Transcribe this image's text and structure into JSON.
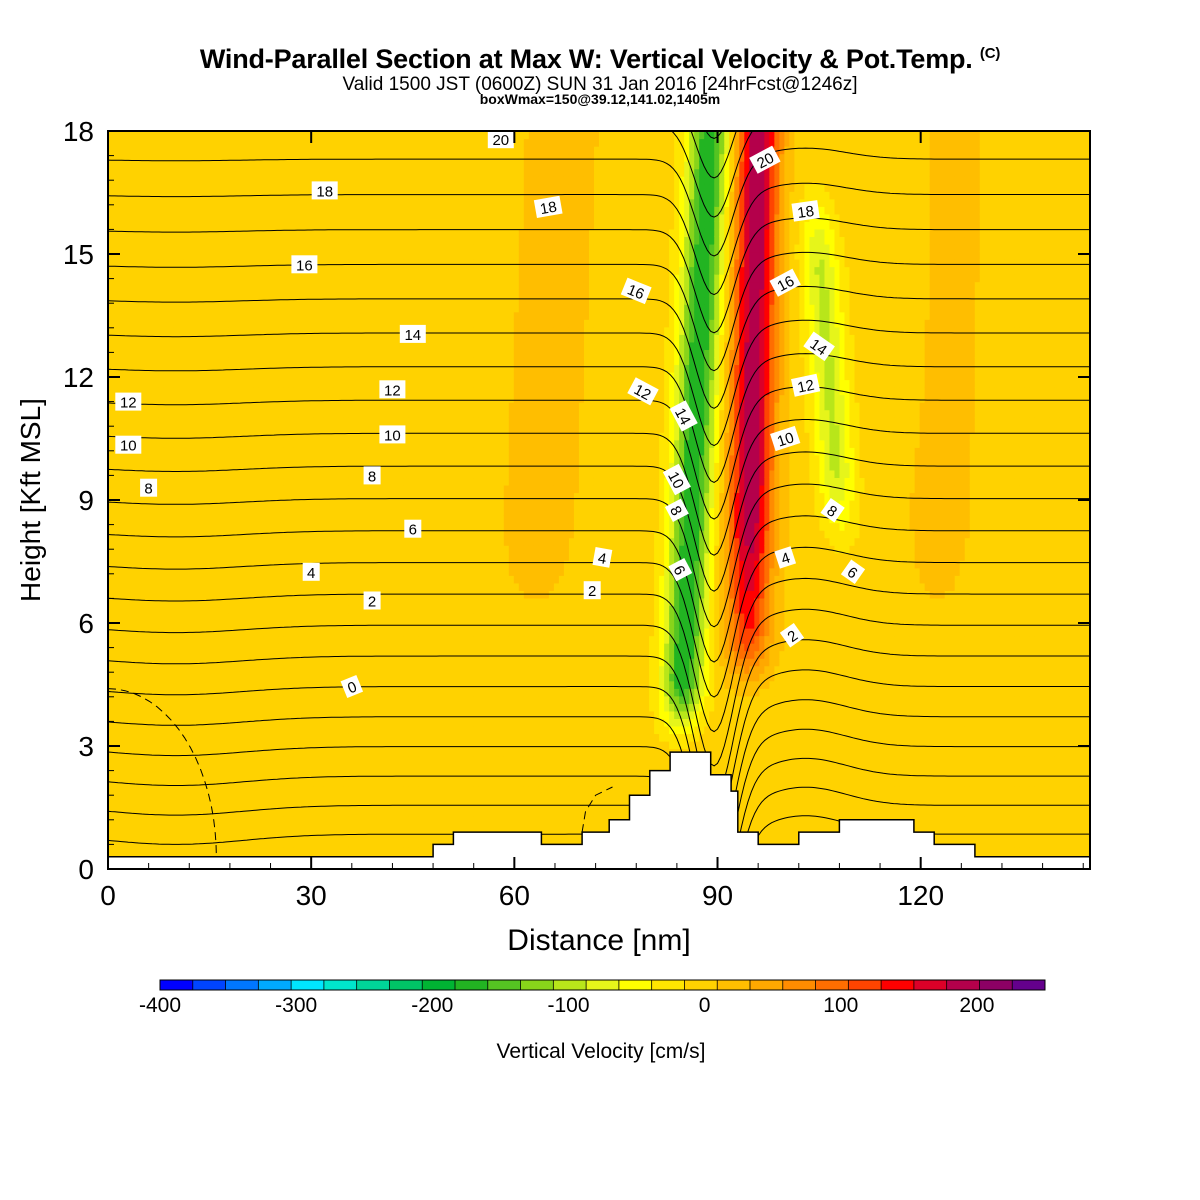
{
  "header": {
    "title": "Wind-Parallel Section at Max W: Vertical Velocity & Pot.Temp.",
    "copyright": "(C)",
    "valid_line": "Valid 1500 JST (0600Z) SUN 31 Jan 2016 [24hrFcst@1246z]",
    "box_line": "boxWmax=150@39.12,141.02,1405m"
  },
  "chart_data": {
    "type": "heatmap",
    "xlabel": "Distance [nm]",
    "ylabel": "Height [Kft MSL]",
    "xlim": [
      0,
      145
    ],
    "ylim": [
      0,
      18
    ],
    "xticks": [
      "0",
      "30",
      "60",
      "90",
      "120"
    ],
    "yticks": [
      "0",
      "3",
      "6",
      "9",
      "12",
      "15",
      "18"
    ],
    "colorbar": {
      "label": "Vertical Velocity [cm/s]",
      "ticks": [
        "-400",
        "-300",
        "-200",
        "-100",
        "0",
        "100",
        "200"
      ],
      "tick_values": [
        -400,
        -300,
        -200,
        -100,
        0,
        100,
        200
      ],
      "range": [
        -400,
        250
      ],
      "bin_width": 25,
      "colors": [
        "#0000ff",
        "#0044ff",
        "#0077ff",
        "#00aaff",
        "#00e6ff",
        "#00e6cc",
        "#00d499",
        "#00c466",
        "#00b433",
        "#22b422",
        "#55c422",
        "#88d41a",
        "#b8e61a",
        "#e6f51a",
        "#ffff00",
        "#ffe600",
        "#ffd200",
        "#ffbe00",
        "#ffa800",
        "#ff8c00",
        "#ff6e00",
        "#ff4400",
        "#ff0000",
        "#dc0028",
        "#b4004b",
        "#8c0064",
        "#64008c"
      ]
    },
    "vertical_velocity_cm_s": {
      "background": 15,
      "features": [
        {
          "kind": "downdraft",
          "x": 86,
          "z_top": 18,
          "z_bottom": 3,
          "peak": -175
        },
        {
          "kind": "updraft",
          "x": 95,
          "z_top": 18,
          "z_bottom": 4.5,
          "peak": 215
        },
        {
          "kind": "weak downdraft",
          "x": 106,
          "z": 13,
          "peak": -70
        },
        {
          "kind": "weak updraft",
          "x": 65,
          "z": 15,
          "peak": 40
        },
        {
          "kind": "weak updraft",
          "x": 122,
          "z": 14,
          "peak": 30
        }
      ]
    },
    "contour_labels": [
      "0",
      "2",
      "4",
      "6",
      "8",
      "10",
      "12",
      "14",
      "16",
      "18",
      "20"
    ],
    "terrain_kft": [
      [
        0,
        0.3
      ],
      [
        48,
        0.3
      ],
      [
        48,
        0.6
      ],
      [
        51,
        0.6
      ],
      [
        51,
        0.9
      ],
      [
        64,
        0.9
      ],
      [
        64,
        0.6
      ],
      [
        70,
        0.6
      ],
      [
        70,
        0.9
      ],
      [
        74,
        0.9
      ],
      [
        74,
        1.2
      ],
      [
        77,
        1.2
      ],
      [
        77,
        1.8
      ],
      [
        80,
        1.8
      ],
      [
        80,
        2.4
      ],
      [
        83,
        2.4
      ],
      [
        83,
        2.85
      ],
      [
        89,
        2.85
      ],
      [
        89,
        2.3
      ],
      [
        92,
        2.3
      ],
      [
        92,
        1.9
      ],
      [
        93,
        1.9
      ],
      [
        93,
        0.9
      ],
      [
        96,
        0.9
      ],
      [
        96,
        0.6
      ],
      [
        102,
        0.6
      ],
      [
        102,
        0.9
      ],
      [
        108,
        0.9
      ],
      [
        108,
        1.2
      ],
      [
        119,
        1.2
      ],
      [
        119,
        0.9
      ],
      [
        122,
        0.9
      ],
      [
        122,
        0.6
      ],
      [
        128,
        0.6
      ],
      [
        128,
        0.3
      ],
      [
        145,
        0.3
      ]
    ]
  }
}
